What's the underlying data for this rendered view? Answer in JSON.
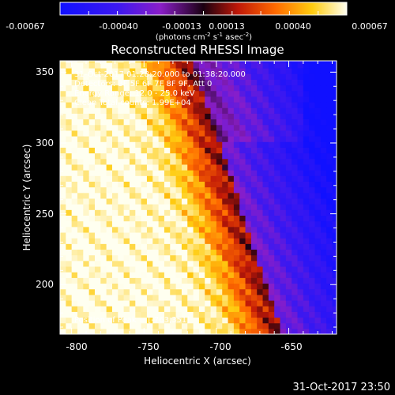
{
  "chart_data": {
    "type": "heatmap",
    "title": "Reconstructed RHESSI Image",
    "xlabel": "Heliocentric X (arcsec)",
    "ylabel": "Heliocentric Y (arcsec)",
    "xlim": [
      -808,
      -617
    ],
    "ylim": [
      165,
      358
    ],
    "xticks": [
      -800,
      -750,
      -700,
      -650
    ],
    "yticks": [
      200,
      250,
      300,
      350
    ],
    "colorbar": {
      "ticks": [
        "-0.00067",
        "-0.00040",
        "-0.00013",
        "0.00013",
        "0.00040",
        "0.00067"
      ],
      "unit_line": "(photons cm",
      "unit_sup1": "-2",
      "unit_mid": " s",
      "unit_sup2": "-1",
      "unit_mid2": " asec",
      "unit_sup3": "-2",
      "unit_end": ")"
    },
    "annotations": {
      "time": "31-Oct-2017 01:28:20.000 to 01:38:20.000",
      "detectors": "Detectors: 3F 5F 6F 7F 8F 9F, Att 0",
      "energy": "Energy Range: 12.0 - 25.0 keV",
      "clean": "Clean    Total counts: 1.99E+04",
      "peak": "Position of Peak = [-763,351]"
    },
    "peak": {
      "x": -763,
      "y": 351
    },
    "boundary_intercept": -705,
    "boundary_slope": -0.32,
    "vmin": -0.00067,
    "vmax": 0.00067
  },
  "footer": {
    "timestamp": "31-Oct-2017 23:50"
  }
}
